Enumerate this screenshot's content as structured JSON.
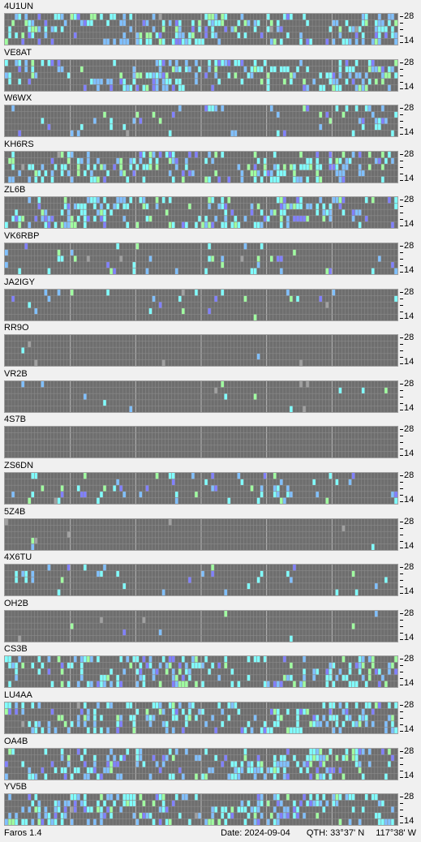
{
  "app": {
    "name": "Faros 1.4"
  },
  "status": {
    "date_label": "Date:",
    "date": "2024-09-04",
    "qth_label": "QTH:",
    "lat": "33°37' N",
    "lon": "117°38' W"
  },
  "axis": {
    "top_label": "28",
    "bottom_label": "14"
  },
  "colors": {
    "background": "#6e6e6e",
    "gridline": "#8a8a8a",
    "level_1": "#8080ff",
    "level_2": "#80c0ff",
    "level_3": "#80ffff",
    "level_4": "#a0ffa0",
    "missing": "#a0a0a0"
  },
  "beacons": [
    {
      "call": "4U1UN",
      "activity": "high"
    },
    {
      "call": "VE8AT",
      "activity": "high"
    },
    {
      "call": "W6WX",
      "activity": "medium"
    },
    {
      "call": "KH6RS",
      "activity": "high"
    },
    {
      "call": "ZL6B",
      "activity": "high"
    },
    {
      "call": "VK6RBP",
      "activity": "medium"
    },
    {
      "call": "JA2IGY",
      "activity": "low"
    },
    {
      "call": "RR9O",
      "activity": "very-low"
    },
    {
      "call": "VR2B",
      "activity": "very-low"
    },
    {
      "call": "4S7B",
      "activity": "none"
    },
    {
      "call": "ZS6DN",
      "activity": "medium"
    },
    {
      "call": "5Z4B",
      "activity": "very-low"
    },
    {
      "call": "4X6TU",
      "activity": "low"
    },
    {
      "call": "OH2B",
      "activity": "very-low"
    },
    {
      "call": "CS3B",
      "activity": "high"
    },
    {
      "call": "LU4AA",
      "activity": "high"
    },
    {
      "call": "OA4B",
      "activity": "high"
    },
    {
      "call": "YV5B",
      "activity": "high"
    }
  ]
}
